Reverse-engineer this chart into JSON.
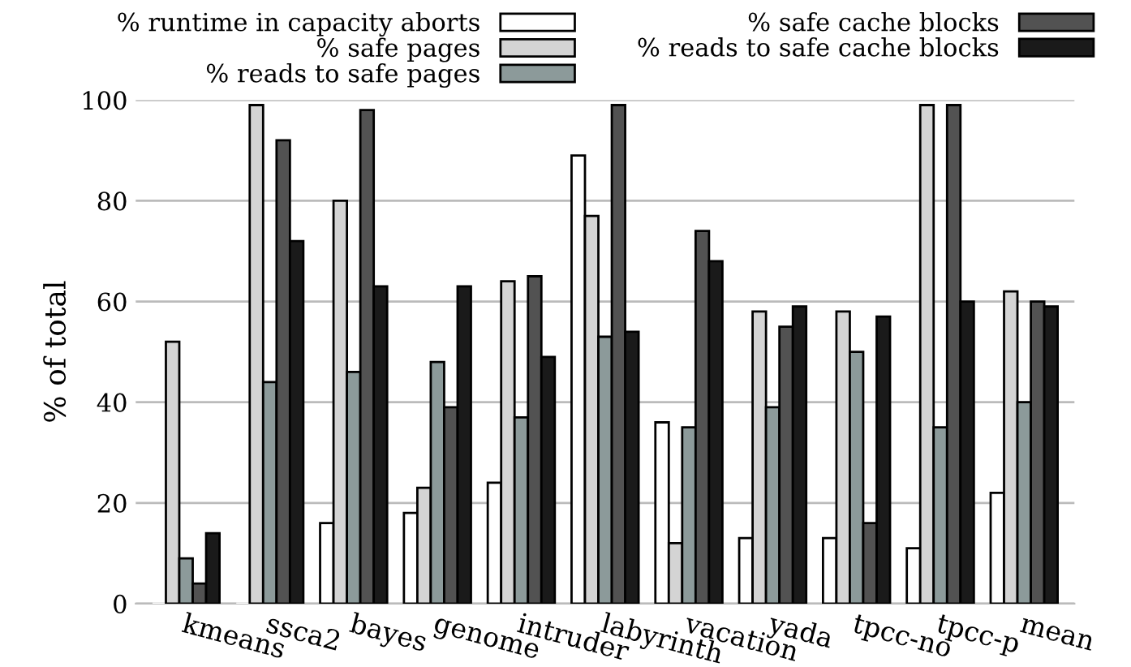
{
  "chart_data": {
    "type": "bar",
    "ylabel": "% of total",
    "categories": [
      "kmeans",
      "ssca2",
      "bayes",
      "genome",
      "intruder",
      "labyrinth",
      "vacation",
      "yada",
      "tpcc-no",
      "tpcc-p",
      "mean"
    ],
    "series": [
      {
        "name": "% runtime in capacity aborts",
        "color": "#ffffff",
        "values": [
          0,
          0,
          16,
          18,
          24,
          89,
          36,
          13,
          13,
          11,
          22
        ]
      },
      {
        "name": "% safe pages",
        "color": "#d4d4d4",
        "values": [
          52,
          99,
          80,
          23,
          64,
          77,
          12,
          58,
          58,
          99,
          62
        ]
      },
      {
        "name": "% reads to safe pages",
        "color": "#8c9a9a",
        "values": [
          9,
          44,
          46,
          48,
          37,
          53,
          35,
          39,
          50,
          35,
          40
        ]
      },
      {
        "name": "% safe cache blocks",
        "color": "#525252",
        "values": [
          4,
          92,
          98,
          39,
          65,
          99,
          74,
          55,
          16,
          99,
          60
        ]
      },
      {
        "name": "% reads to safe cache blocks",
        "color": "#1a1a1a",
        "values": [
          14,
          72,
          63,
          63,
          49,
          54,
          68,
          59,
          57,
          60,
          59
        ]
      }
    ],
    "ylim": [
      0,
      100
    ],
    "yticks": [
      0,
      20,
      40,
      60,
      80,
      100
    ],
    "grid": "y",
    "legend": "top"
  }
}
